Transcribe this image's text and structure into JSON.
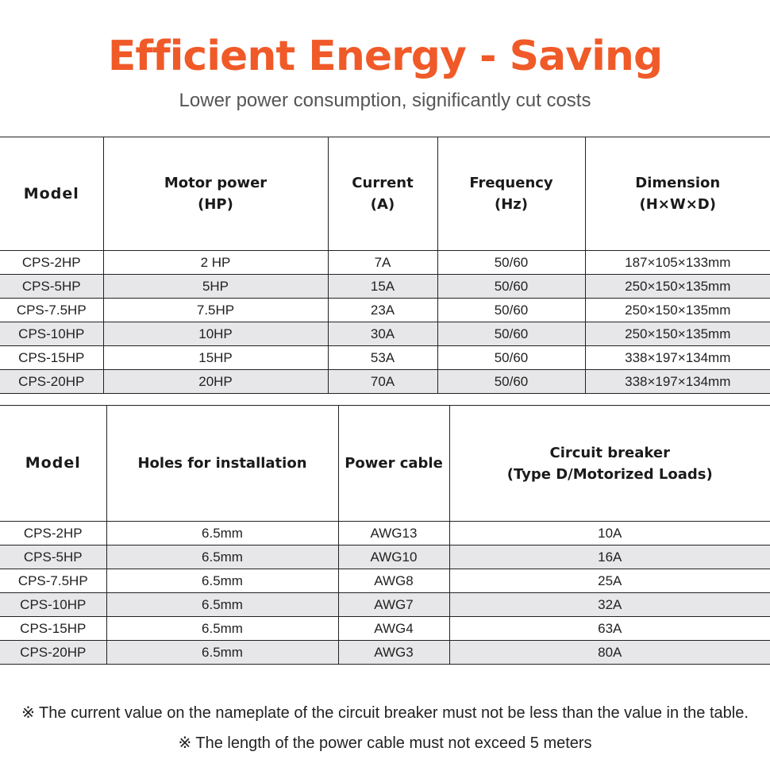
{
  "header": {
    "title": "Efficient Energy - Saving",
    "subtitle": "Lower power consumption, significantly cut costs"
  },
  "table1": {
    "headers": [
      [
        "Model"
      ],
      [
        "Motor power",
        "(HP)"
      ],
      [
        "Current",
        "(A)"
      ],
      [
        "Frequency",
        "(Hz)"
      ],
      [
        "Dimension",
        "(H×W×D)"
      ]
    ],
    "rows": [
      [
        "CPS-2HP",
        "2 HP",
        "7A",
        "50/60",
        "187×105×133mm"
      ],
      [
        "CPS-5HP",
        "5HP",
        "15A",
        "50/60",
        "250×150×135mm"
      ],
      [
        "CPS-7.5HP",
        "7.5HP",
        "23A",
        "50/60",
        "250×150×135mm"
      ],
      [
        "CPS-10HP",
        "10HP",
        "30A",
        "50/60",
        "250×150×135mm"
      ],
      [
        "CPS-15HP",
        "15HP",
        "53A",
        "50/60",
        "338×197×134mm"
      ],
      [
        "CPS-20HP",
        "20HP",
        "70A",
        "50/60",
        "338×197×134mm"
      ]
    ]
  },
  "table2": {
    "headers": [
      [
        "Model"
      ],
      [
        "Holes for installation"
      ],
      [
        "Power cable"
      ],
      [
        "Circuit breaker",
        "(Type D/Motorized Loads)"
      ]
    ],
    "rows": [
      [
        "CPS-2HP",
        "6.5mm",
        "AWG13",
        "10A"
      ],
      [
        "CPS-5HP",
        "6.5mm",
        "AWG10",
        "16A"
      ],
      [
        "CPS-7.5HP",
        "6.5mm",
        "AWG8",
        "25A"
      ],
      [
        "CPS-10HP",
        "6.5mm",
        "AWG7",
        "32A"
      ],
      [
        "CPS-15HP",
        "6.5mm",
        "AWG4",
        "63A"
      ],
      [
        "CPS-20HP",
        "6.5mm",
        "AWG3",
        "80A"
      ]
    ]
  },
  "notes": [
    "※ The current value on the nameplate of the circuit breaker must not be less than the value in the table.",
    "※ The length of the power cable must not exceed 5 meters"
  ],
  "colors": {
    "title": "#f05a28",
    "subtitle": "#555555",
    "stripe": "#e7e7e9",
    "border": "#222222"
  }
}
